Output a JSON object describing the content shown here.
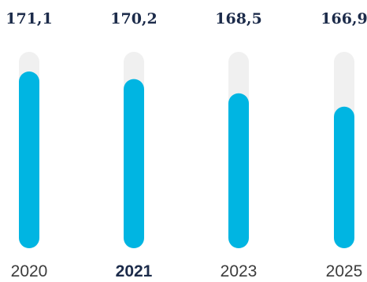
{
  "chart_data": {
    "type": "bar",
    "categories": [
      "2020",
      "2021",
      "2023",
      "2025"
    ],
    "values": [
      171.1,
      170.2,
      168.5,
      166.9
    ],
    "value_labels": [
      "171,1",
      "170,2",
      "168,5",
      "166,9"
    ],
    "highlighted_category": "2021",
    "title": "",
    "xlabel": "",
    "ylabel": "",
    "ylim": [
      150,
      175
    ],
    "grid": false,
    "legend": "none",
    "colors": {
      "bar": "#00b5e2",
      "track": "#f0f0f0",
      "value_text": "#1c2b4a",
      "category_text": "#3c3c3c",
      "highlight_text": "#1c2b4a"
    }
  }
}
